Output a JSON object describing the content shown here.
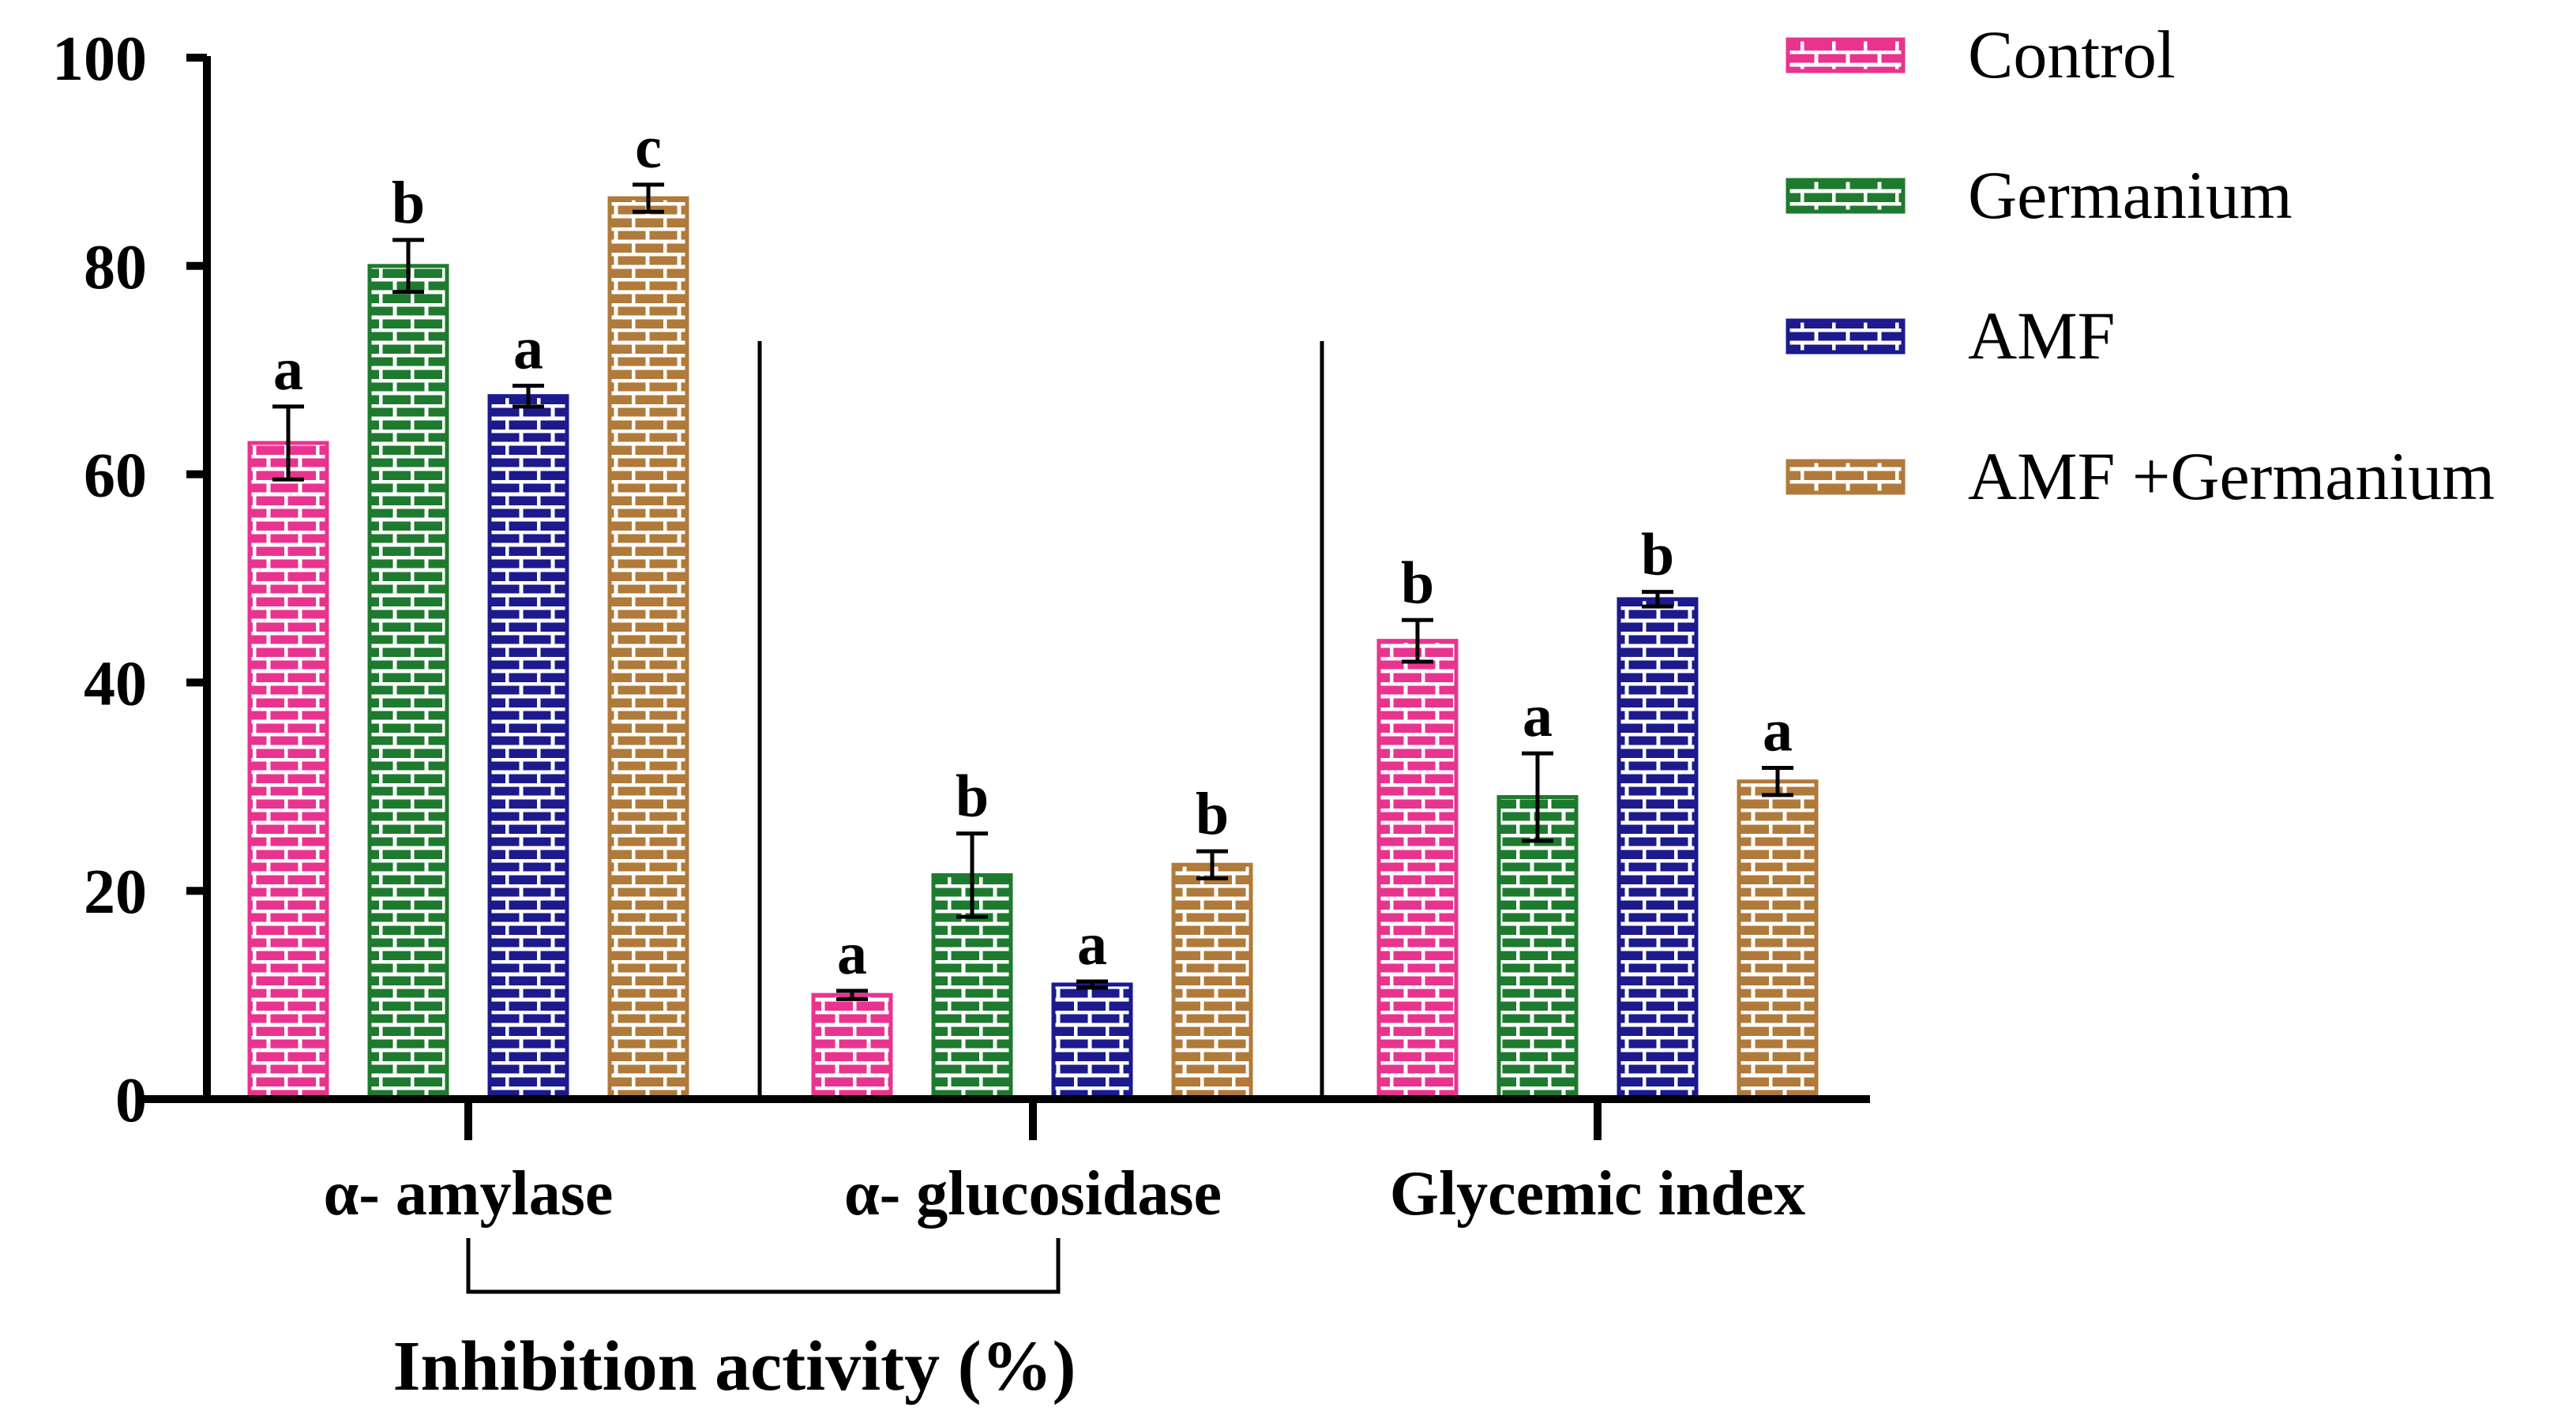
{
  "chart_data": {
    "type": "bar",
    "title": "",
    "xlabel": "Inhibition activity (%)",
    "ylabel": "",
    "ylim": [
      0,
      100
    ],
    "yticks": [
      "0",
      "20",
      "40",
      "60",
      "80",
      "100"
    ],
    "grid": false,
    "legend_position": "top-right",
    "categories": [
      "α- amylase",
      "α- glucosidase",
      "Glycemic index"
    ],
    "series": [
      {
        "name": "Control",
        "color": "#e8348f",
        "values": [
          63,
          10,
          44
        ],
        "errors": [
          3.5,
          0.4,
          2.0
        ],
        "letters": [
          "a",
          "a",
          "b"
        ]
      },
      {
        "name": "Germanium",
        "color": "#1e7a2e",
        "values": [
          80,
          21.5,
          29
        ],
        "errors": [
          2.5,
          4.0,
          4.2
        ],
        "letters": [
          "b",
          "b",
          "a"
        ]
      },
      {
        "name": "AMF",
        "color": "#1c1a8c",
        "values": [
          67.5,
          11,
          48
        ],
        "errors": [
          1.0,
          0.3,
          0.7
        ],
        "letters": [
          "a",
          "a",
          "b"
        ]
      },
      {
        "name": "AMF +Germanium",
        "color": "#b07a3a",
        "values": [
          86.5,
          22.5,
          30.5
        ],
        "errors": [
          1.3,
          1.3,
          1.3
        ],
        "letters": [
          "c",
          "b",
          "a"
        ]
      }
    ],
    "bracket_groups": [
      0,
      1
    ]
  }
}
